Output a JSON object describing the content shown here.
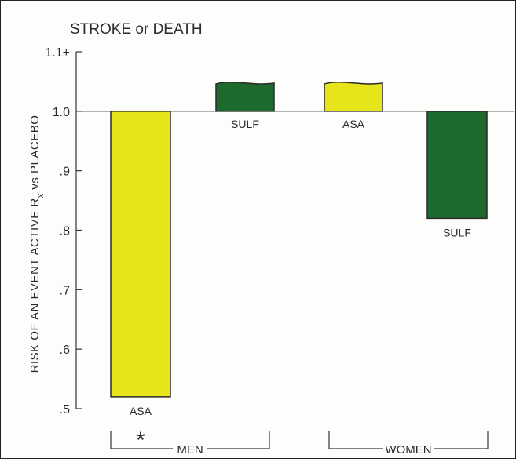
{
  "chart_data": {
    "type": "bar",
    "title": "STROKE or DEATH",
    "ylabel_main": "RISK OF AN EVENT  ACTIVE R",
    "ylabel_sub": "x",
    "ylabel_tail": " vs PLACEBO",
    "xlabel": "",
    "ylim": [
      0.5,
      1.1
    ],
    "baseline": 1.0,
    "yticks": [
      {
        "value": 1.1,
        "label": "1.1+"
      },
      {
        "value": 1.0,
        "label": "1.0"
      },
      {
        "value": 0.9,
        "label": ".9"
      },
      {
        "value": 0.8,
        "label": ".8"
      },
      {
        "value": 0.7,
        "label": ".7"
      },
      {
        "value": 0.6,
        "label": ".6"
      },
      {
        "value": 0.5,
        "label": ".5"
      }
    ],
    "groups": [
      {
        "name": "MEN",
        "note": "*"
      },
      {
        "name": "WOMEN",
        "note": ""
      }
    ],
    "bars": [
      {
        "group": "MEN",
        "label": "ASA",
        "value": 0.52,
        "color": "#e8e41c"
      },
      {
        "group": "MEN",
        "label": "SULF",
        "value": 1.05,
        "color": "#1d6a2c"
      },
      {
        "group": "WOMEN",
        "label": "ASA",
        "value": 1.05,
        "color": "#e8e41c"
      },
      {
        "group": "WOMEN",
        "label": "SULF",
        "value": 0.82,
        "color": "#1d6a2c"
      }
    ],
    "grid": false,
    "legend": "none"
  }
}
